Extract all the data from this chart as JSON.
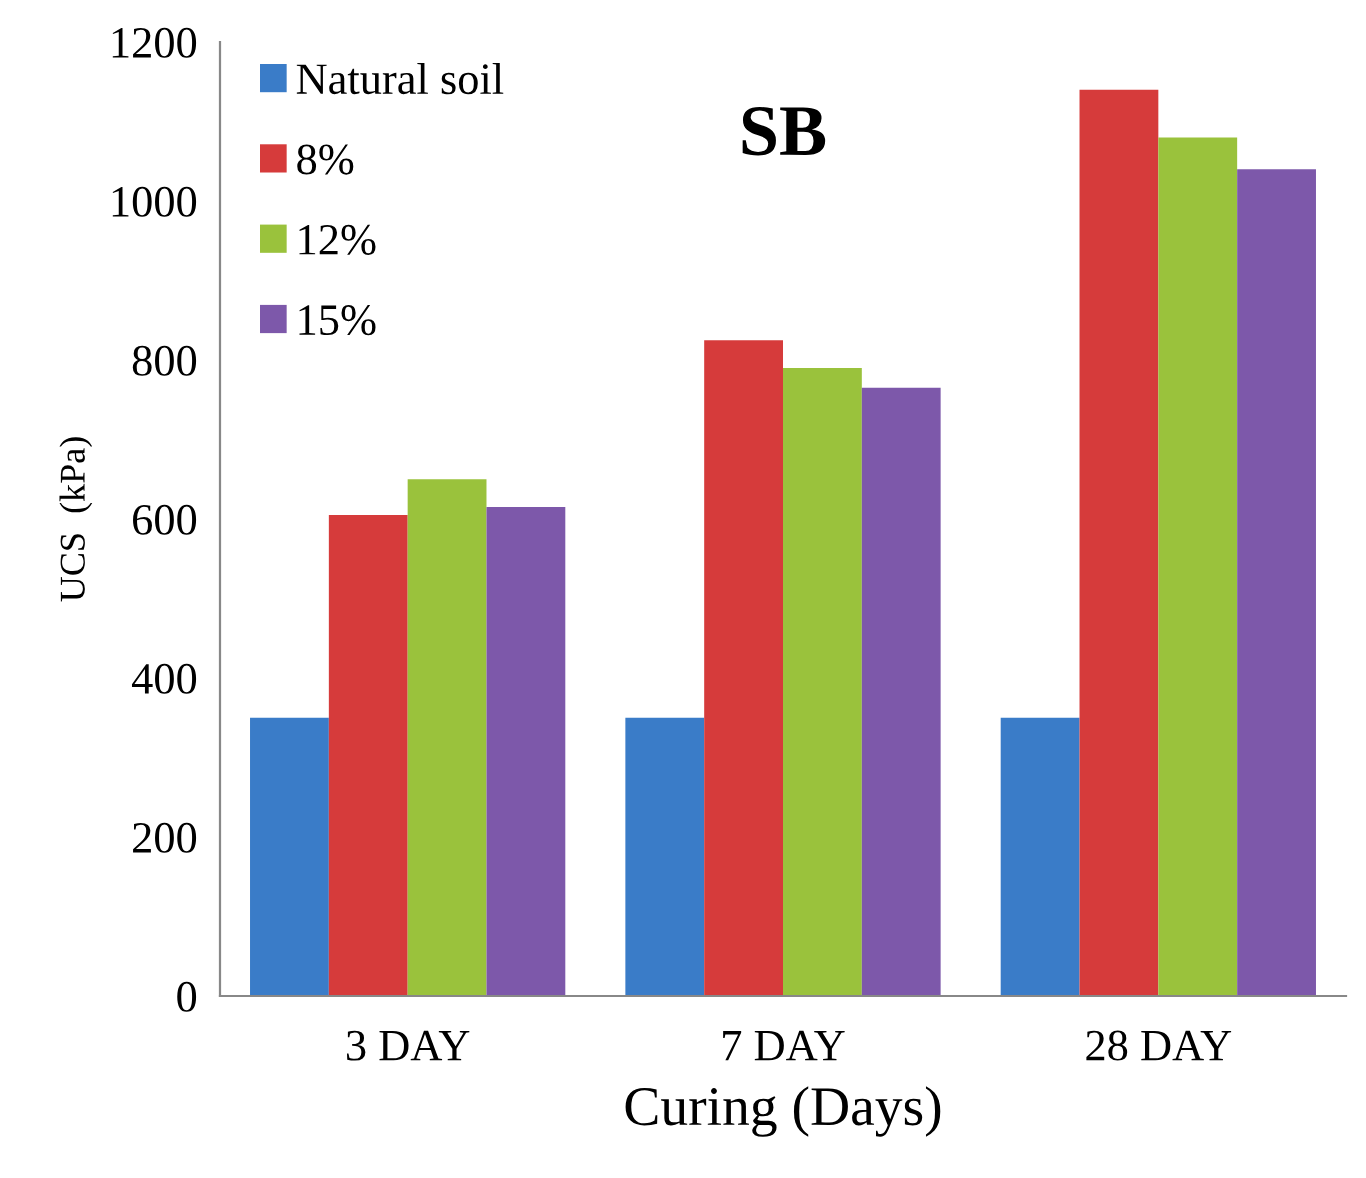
{
  "chart_data": {
    "type": "bar",
    "title": "SB",
    "xlabel": "Curing (Days)",
    "ylabel": "UCS  (kPa)",
    "categories": [
      "3 DAY",
      "7 DAY",
      "28 DAY"
    ],
    "series": [
      {
        "name": "Natural soil",
        "color": "#3a7cc8",
        "values": [
          350,
          350,
          350
        ]
      },
      {
        "name": "8%",
        "color": "#d63b3b",
        "values": [
          605,
          825,
          1140
        ]
      },
      {
        "name": "12%",
        "color": "#9ac23c",
        "values": [
          650,
          790,
          1080
        ]
      },
      {
        "name": "15%",
        "color": "#7d58aa",
        "values": [
          615,
          765,
          1040
        ]
      }
    ],
    "ylim": [
      0,
      1200
    ],
    "yticks": [
      0,
      200,
      400,
      600,
      800,
      1000,
      1200
    ],
    "grid": false,
    "legend": "top left"
  }
}
